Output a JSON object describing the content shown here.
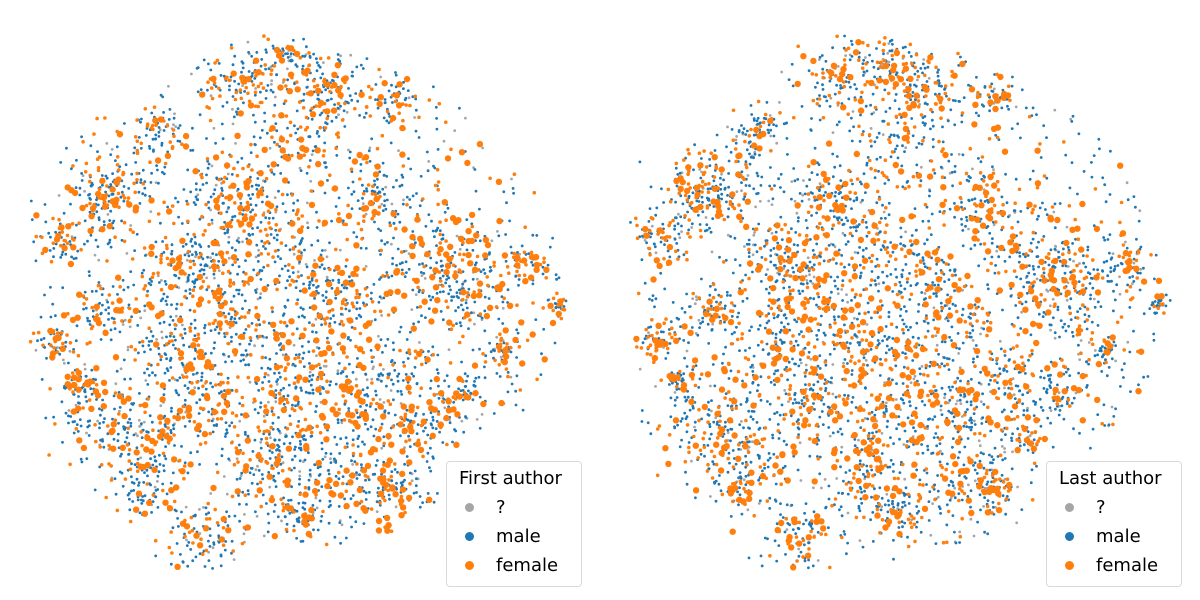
{
  "chart_data": [
    {
      "type": "scatter",
      "legend": {
        "title": "First author",
        "placement": "bottom-right",
        "entries": [
          {
            "label": "?",
            "color": "#a6a6a6"
          },
          {
            "label": "male",
            "color": "#1f77b4"
          },
          {
            "label": "female",
            "color": "#ff7f0e"
          }
        ]
      },
      "axes_visible": false,
      "grid": false
    },
    {
      "type": "scatter",
      "legend": {
        "title": "Last author",
        "placement": "bottom-right",
        "entries": [
          {
            "label": "?",
            "color": "#a6a6a6"
          },
          {
            "label": "male",
            "color": "#1f77b4"
          },
          {
            "label": "female",
            "color": "#ff7f0e"
          }
        ]
      },
      "axes_visible": false,
      "grid": false
    }
  ]
}
